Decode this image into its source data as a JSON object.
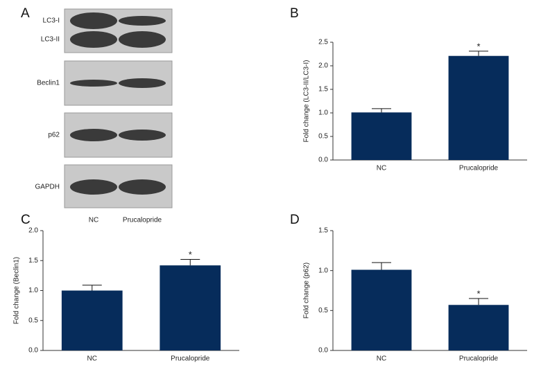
{
  "blot": {
    "panel_label": "A",
    "rows": [
      "LC3-I",
      "LC3-II",
      "Beclin1",
      "p62",
      "GAPDH"
    ],
    "lanes": [
      "NC",
      "Prucalopride"
    ]
  },
  "chart_data": [
    {
      "type": "bar",
      "panel_label": "B",
      "y_label": "Fold change (LC3-II/LC3-I)",
      "categories": [
        "NC",
        "Prucalopride"
      ],
      "values": [
        1.01,
        2.21
      ],
      "errors": [
        0.08,
        0.1
      ],
      "significance": [
        null,
        "*"
      ],
      "color": "#062c5b",
      "ylim": [
        0,
        2.5
      ],
      "yticks": [
        {
          "value": 0,
          "label": "0.0"
        },
        0.5,
        {
          "value": 1,
          "label": "1.0"
        },
        1.5,
        {
          "value": 2,
          "label": "2.0"
        },
        2.5
      ]
    },
    {
      "type": "bar",
      "panel_label": "C",
      "y_label": "Fold change (Beclin1)",
      "categories": [
        "NC",
        "Prucalopride"
      ],
      "values": [
        1.0,
        1.42
      ],
      "errors": [
        0.09,
        0.1
      ],
      "significance": [
        null,
        "*"
      ],
      "color": "#062c5b",
      "ylim": [
        0,
        2
      ],
      "yticks": [
        {
          "value": 0,
          "label": "0.0"
        },
        0.5,
        {
          "value": 1,
          "label": "1.0"
        },
        1.5,
        {
          "value": 2,
          "label": "2.0"
        }
      ]
    },
    {
      "type": "bar",
      "panel_label": "D",
      "y_label": "Fold change (p62)",
      "categories": [
        "NC",
        "Prucalopride"
      ],
      "values": [
        1.01,
        0.57
      ],
      "errors": [
        0.09,
        0.08
      ],
      "significance": [
        null,
        "*"
      ],
      "color": "#062c5b",
      "ylim": [
        0,
        1.5
      ],
      "yticks": [
        {
          "value": 0,
          "label": "0.0"
        },
        0.5,
        {
          "value": 1,
          "label": "1.0"
        },
        1.5
      ]
    }
  ]
}
